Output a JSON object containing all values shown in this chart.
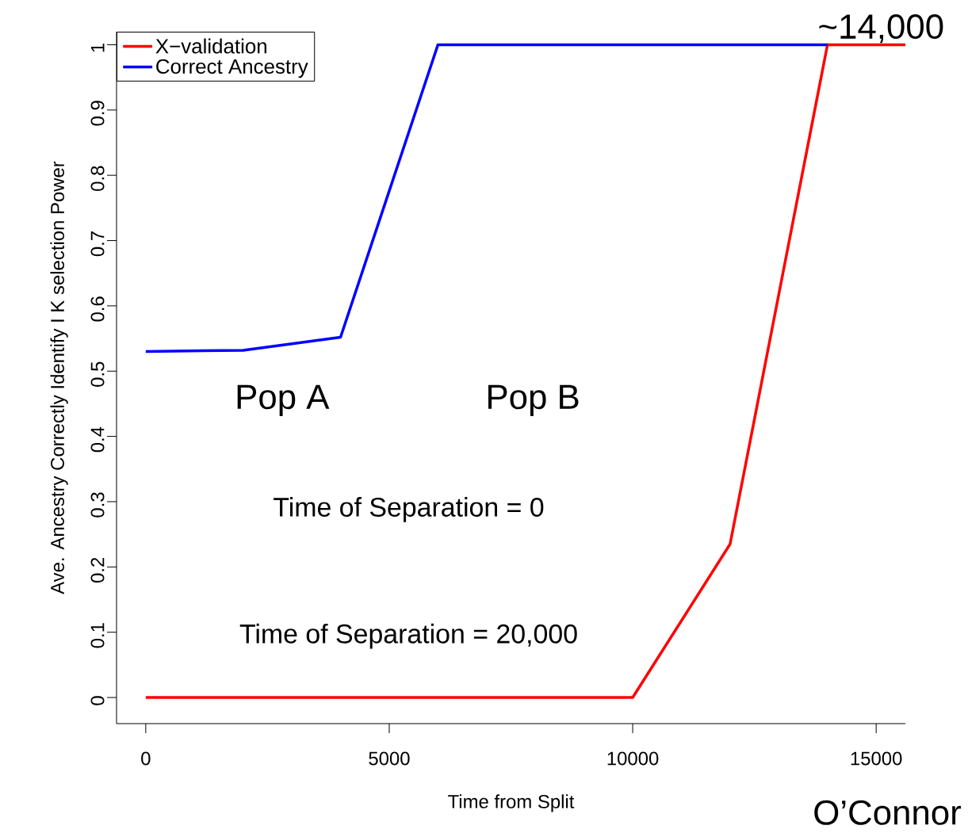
{
  "chart_data": {
    "type": "line",
    "xlabel": "Time from Split",
    "ylabel": "Ave. Ancestry Correctly Identify I K selection Power",
    "xlim": [
      -600,
      15600
    ],
    "ylim": [
      -0.04,
      1.02
    ],
    "xticks": [
      0,
      5000,
      10000,
      15000
    ],
    "yticks": [
      0,
      0.1,
      0.2,
      0.3,
      0.4,
      0.5,
      0.6,
      0.7,
      0.8,
      0.9,
      1
    ],
    "legend": "top left",
    "grid": false,
    "marker": "none",
    "line_style": "solid",
    "series": [
      {
        "name": "X−validation",
        "color": "#ff0000",
        "x": [
          0,
          10000,
          12000,
          14000,
          15600
        ],
        "values": [
          0,
          0,
          0.235,
          1,
          1
        ]
      },
      {
        "name": "Correct Ancestry",
        "color": "#0000ff",
        "x": [
          0,
          2000,
          4000,
          6000,
          14000
        ],
        "values": [
          0.53,
          0.532,
          0.552,
          1,
          1
        ]
      }
    ],
    "annotations": [
      {
        "text": "~14,000",
        "x": 14000,
        "y": 1
      },
      "Pop A",
      "Pop B",
      "Time of Separation = 0",
      "Time of Separation = 20,000",
      "O’Connor"
    ]
  }
}
